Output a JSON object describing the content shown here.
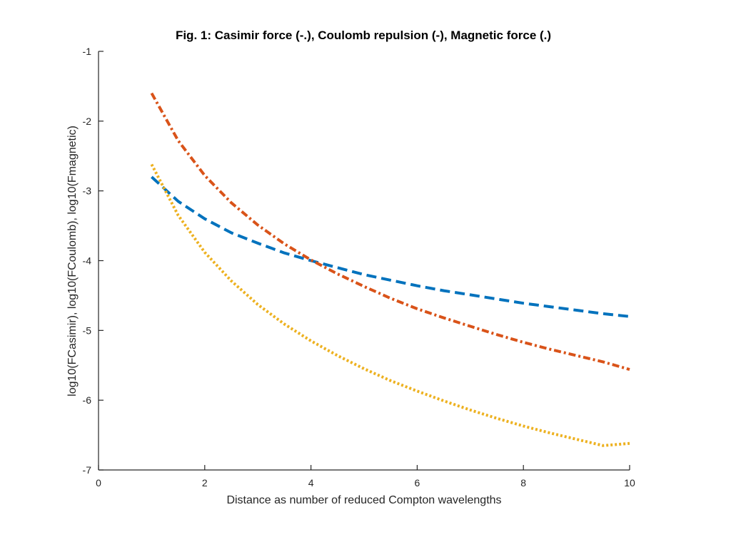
{
  "chart_data": {
    "type": "line",
    "title": "Fig. 1: Casimir force (-.), Coulomb repulsion (-), Magnetic force (.)",
    "xlabel": "Distance as number of reduced Compton wavelengths",
    "ylabel": "log10(FCasimir), log10(FCoulomb), log10(Fmagnetic)",
    "xlim": [
      0,
      10
    ],
    "ylim": [
      -7,
      -1
    ],
    "xticks": [
      0,
      2,
      4,
      6,
      8,
      10
    ],
    "xtick_labels": [
      "0",
      "2",
      "4",
      "6",
      "8",
      "10"
    ],
    "yticks": [
      -1,
      -2,
      -3,
      -4,
      -5,
      -6,
      -7
    ],
    "ytick_labels": [
      "-1",
      "-2",
      "-3",
      "-4",
      "-5",
      "-6",
      "-7"
    ],
    "grid": false,
    "x": [
      1,
      1.5,
      2,
      2.5,
      3,
      3.5,
      4,
      4.5,
      5,
      5.5,
      6,
      6.5,
      7,
      7.5,
      8,
      8.5,
      9,
      9.5,
      10
    ],
    "series": [
      {
        "style": "dashed",
        "color": "#0072BD",
        "values": [
          -2.8,
          -3.15,
          -3.4,
          -3.6,
          -3.75,
          -3.89,
          -4.0,
          -4.1,
          -4.2,
          -4.28,
          -4.36,
          -4.43,
          -4.49,
          -4.55,
          -4.61,
          -4.66,
          -4.71,
          -4.76,
          -4.8
        ]
      },
      {
        "style": "dash-dot",
        "color": "#D95319",
        "values": [
          -1.6,
          -2.28,
          -2.78,
          -3.17,
          -3.49,
          -3.76,
          -3.99,
          -4.19,
          -4.37,
          -4.54,
          -4.69,
          -4.82,
          -4.94,
          -5.06,
          -5.17,
          -5.27,
          -5.36,
          -5.45,
          -5.56
        ]
      },
      {
        "style": "dotted",
        "color": "#EDB120",
        "values": [
          -2.62,
          -3.35,
          -3.88,
          -4.29,
          -4.63,
          -4.91,
          -5.15,
          -5.36,
          -5.55,
          -5.72,
          -5.87,
          -6.01,
          -6.14,
          -6.26,
          -6.37,
          -6.47,
          -6.56,
          -6.65,
          -6.62
        ]
      }
    ]
  }
}
